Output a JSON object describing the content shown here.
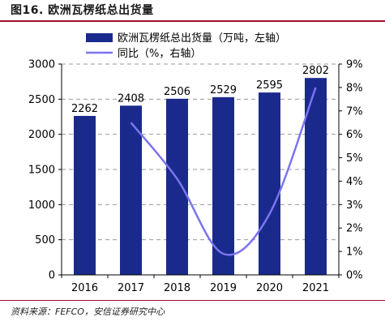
{
  "figure_title": "图16. 欧洲瓦楞纸总出货量",
  "source_note": "资料来源：FEFCO，安信证券研究中心",
  "colors": {
    "bar": "#1a2a8c",
    "line": "#7b74ee",
    "title_rule": "#a30f2d",
    "grid": "#9a9a9a"
  },
  "chart_data": {
    "type": "bar",
    "categories": [
      "2016",
      "2017",
      "2018",
      "2019",
      "2020",
      "2021"
    ],
    "series": [
      {
        "name": "欧洲瓦楞纸总出货量（万吨，左轴）",
        "type": "bar",
        "axis": "left",
        "values": [
          2262,
          2408,
          2506,
          2529,
          2595,
          2802
        ],
        "labels": [
          "2262",
          "2408",
          "2506",
          "2529",
          "2595",
          "2802"
        ]
      },
      {
        "name": "同比（%，右轴）",
        "type": "line",
        "axis": "right",
        "values": [
          null,
          6.5,
          4.1,
          0.9,
          2.6,
          8.0
        ]
      }
    ],
    "y_left": {
      "min": 0,
      "max": 3000,
      "ticks": [
        "0",
        "500",
        "1000",
        "1500",
        "2000",
        "2500",
        "3000"
      ]
    },
    "y_right": {
      "min": 0,
      "max": 9,
      "ticks": [
        "0%",
        "1%",
        "2%",
        "3%",
        "4%",
        "5%",
        "6%",
        "7%",
        "8%",
        "9%"
      ]
    },
    "grid": "horizontal dashed",
    "legend": "top-center"
  }
}
